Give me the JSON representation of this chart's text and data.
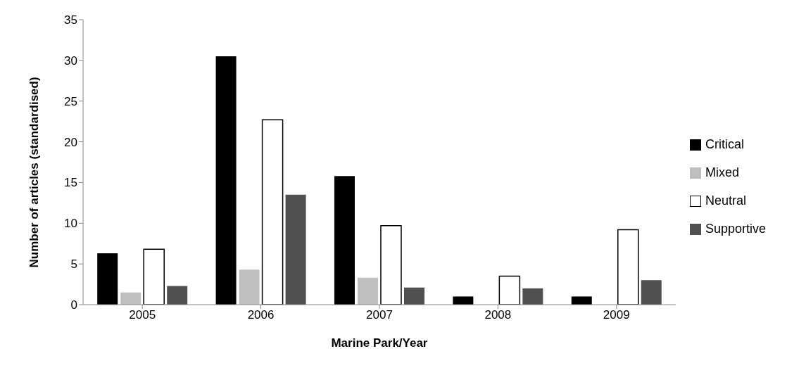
{
  "chart_data": {
    "type": "bar",
    "xlabel": "Marine Park/Year",
    "ylabel": "Number of articles (standardised)",
    "categories": [
      "2005",
      "2006",
      "2007",
      "2008",
      "2009"
    ],
    "series": [
      {
        "name": "Critical",
        "color": "#000000",
        "values": [
          6.3,
          30.5,
          15.8,
          1,
          1
        ]
      },
      {
        "name": "Mixed",
        "color": "#bfbfbf",
        "values": [
          1.5,
          4.3,
          3.3,
          0,
          0
        ]
      },
      {
        "name": "Neutral",
        "color": "#ffffff",
        "values": [
          6.8,
          22.7,
          9.7,
          3.5,
          9.2
        ]
      },
      {
        "name": "Supportive",
        "color": "#505050",
        "values": [
          2.3,
          13.5,
          2.1,
          2,
          3
        ]
      }
    ],
    "ylim": [
      0,
      35
    ],
    "yticks": [
      0,
      5,
      10,
      15,
      20,
      25,
      30,
      35
    ],
    "grid": false,
    "legend": "right"
  }
}
